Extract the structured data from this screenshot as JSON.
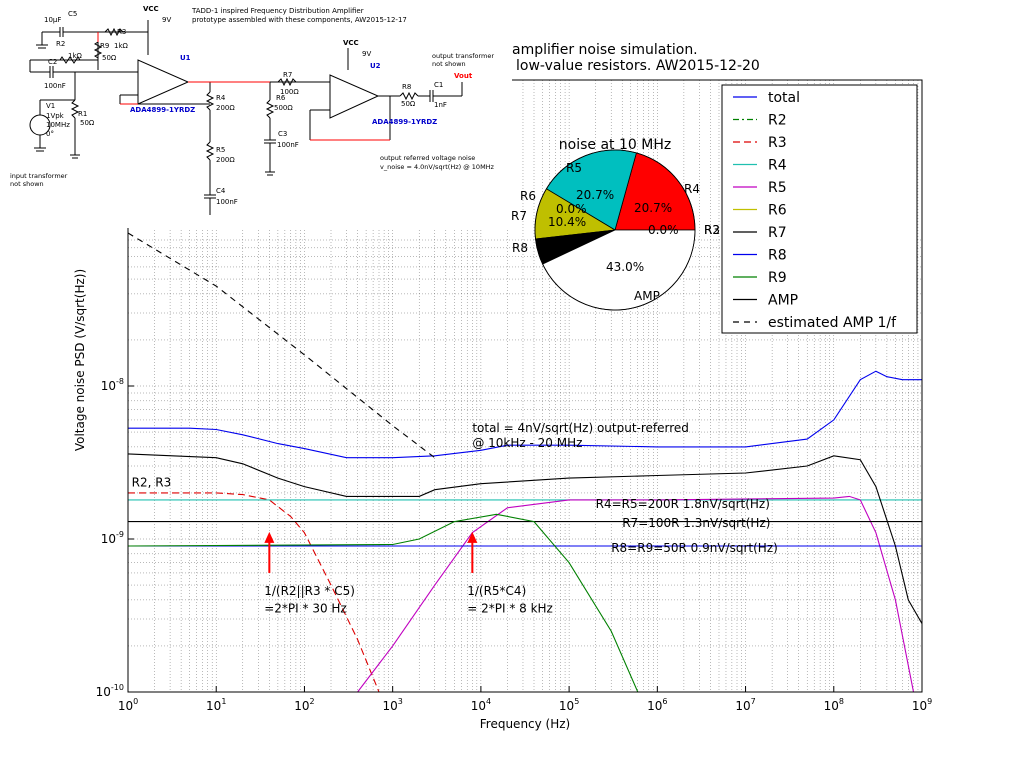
{
  "schematic": {
    "title": "TADD-1 inspired Frequency Distribution Amplifier",
    "subtitle": "prototype assembled with these components, AW2015-12-17",
    "vcc1": "VCC",
    "v9a": "9V",
    "vcc2": "VCC",
    "v9b": "9V",
    "c5": "C5",
    "c5v": "10µF",
    "r2": "R2",
    "r2v": "1kΩ",
    "r3": "R3",
    "r3v": "1kΩ",
    "r9": "R9",
    "r9v": "50Ω",
    "c2": "C2",
    "c2v": "100nF",
    "v1": "V1",
    "v1a": "1Vpk",
    "v1b": "10MHz",
    "v1c": "0°",
    "r1": "R1",
    "r1v": "50Ω",
    "u1": "U1",
    "u1p": "ADA4899-1YRDZ",
    "r4": "R4",
    "r4v": "200Ω",
    "r5": "R5",
    "r5v": "200Ω",
    "c4": "C4",
    "c4v": "100nF",
    "r7": "R7",
    "r7v": "100Ω",
    "r6": "R6",
    "r6v": "500Ω",
    "c3": "C3",
    "c3v": "100nF",
    "u2": "U2",
    "u2p": "ADA4899-1YRDZ",
    "r8": "R8",
    "r8v": "50Ω",
    "c1": "C1",
    "c1v": "1nF",
    "vout": "Vout",
    "out_note1": "output transformer",
    "out_note2": "not shown",
    "in_note1": "input transformer",
    "in_note2": "not shown",
    "noise_note1": "output referred voltage noise",
    "noise_note2": "v_noise = 4.0nV/sqrt(Hz) @ 10MHz"
  },
  "chart_data": [
    {
      "type": "line",
      "title_line1": "amplifier noise simulation.",
      "title_line2": "low-value resistors. AW2015-12-20",
      "xlabel": "Frequency (Hz)",
      "ylabel": "Voltage noise PSD (V/sqrt(Hz))",
      "xscale": "log",
      "yscale": "log",
      "xlim": [
        1,
        1000000000
      ],
      "ylim": [
        1e-10,
        1e-07
      ],
      "x_ticks": [
        {
          "v": 1,
          "base": "10",
          "exp": "0"
        },
        {
          "v": 10,
          "base": "10",
          "exp": "1"
        },
        {
          "v": 100,
          "base": "10",
          "exp": "2"
        },
        {
          "v": 1000,
          "base": "10",
          "exp": "3"
        },
        {
          "v": 10000,
          "base": "10",
          "exp": "4"
        },
        {
          "v": 100000,
          "base": "10",
          "exp": "5"
        },
        {
          "v": 1000000,
          "base": "10",
          "exp": "6"
        },
        {
          "v": 10000000,
          "base": "10",
          "exp": "7"
        },
        {
          "v": 100000000,
          "base": "10",
          "exp": "8"
        },
        {
          "v": 1000000000,
          "base": "10",
          "exp": "9"
        }
      ],
      "y_ticks": [
        {
          "v": 1e-10,
          "base": "10",
          "exp": "-10"
        },
        {
          "v": 1e-09,
          "base": "10",
          "exp": "-9"
        },
        {
          "v": 1e-08,
          "base": "10",
          "exp": "-8"
        }
      ],
      "grid": true,
      "legend_position": "top-right",
      "series": [
        {
          "name": "total",
          "color": "#0000ee",
          "dash": "",
          "points": [
            [
              1,
              5.3e-09
            ],
            [
              5,
              5.3e-09
            ],
            [
              10,
              5.2e-09
            ],
            [
              20,
              4.8e-09
            ],
            [
              50,
              4.2e-09
            ],
            [
              100,
              3.9e-09
            ],
            [
              300,
              3.4e-09
            ],
            [
              1000,
              3.4e-09
            ],
            [
              3000,
              3.5e-09
            ],
            [
              10000,
              3.8e-09
            ],
            [
              20000,
              4.1e-09
            ],
            [
              100000,
              4.1e-09
            ],
            [
              1000000,
              4e-09
            ],
            [
              10000000,
              4e-09
            ],
            [
              50000000,
              4.5e-09
            ],
            [
              100000000,
              6e-09
            ],
            [
              200000000,
              1.1e-08
            ],
            [
              300000000,
              1.25e-08
            ],
            [
              400000000,
              1.15e-08
            ],
            [
              600000000,
              1.1e-08
            ],
            [
              1000000000,
              1.1e-08
            ]
          ]
        },
        {
          "name": "R2",
          "color": "#008000",
          "dash": "6,3,2,3",
          "points": [
            [
              1,
              9e-10
            ],
            [
              1000000000,
              9e-10
            ]
          ]
        },
        {
          "name": "R3",
          "color": "#dd0000",
          "dash": "7,4",
          "points": [
            [
              1,
              2e-09
            ],
            [
              10,
              2e-09
            ],
            [
              20,
              1.95e-09
            ],
            [
              40,
              1.8e-09
            ],
            [
              70,
              1.4e-09
            ],
            [
              100,
              1.1e-09
            ],
            [
              200,
              5e-10
            ],
            [
              400,
              2.2e-10
            ],
            [
              700,
              1e-10
            ]
          ]
        },
        {
          "name": "R4",
          "color": "#20c0b0",
          "dash": "",
          "points": [
            [
              1,
              1.8e-09
            ],
            [
              1000000000,
              1.8e-09
            ]
          ]
        },
        {
          "name": "R5",
          "color": "#c000c0",
          "dash": "",
          "points": [
            [
              400,
              1e-10
            ],
            [
              1000,
              2e-10
            ],
            [
              3000,
              5e-10
            ],
            [
              8000,
              1.1e-09
            ],
            [
              20000,
              1.6e-09
            ],
            [
              100000,
              1.8e-09
            ],
            [
              1000000,
              1.8e-09
            ],
            [
              100000000,
              1.85e-09
            ],
            [
              150000000,
              1.9e-09
            ],
            [
              200000000,
              1.8e-09
            ],
            [
              300000000,
              1.1e-09
            ],
            [
              500000000,
              4e-10
            ],
            [
              800000000,
              1e-10
            ]
          ]
        },
        {
          "name": "R6",
          "color": "#c0c000",
          "dash": "",
          "points": []
        },
        {
          "name": "R7",
          "color": "#000000",
          "dash": "",
          "points": [
            [
              1,
              1.3e-09
            ],
            [
              1000000000,
              1.3e-09
            ]
          ]
        },
        {
          "name": "R8",
          "color": "#0000ee",
          "dash": "",
          "points": [
            [
              1,
              9e-10
            ],
            [
              1000000000,
              9e-10
            ]
          ]
        },
        {
          "name": "R9",
          "color": "#008000",
          "dash": "",
          "points": [
            [
              1,
              9e-10
            ],
            [
              1000,
              9.2e-10
            ],
            [
              2000,
              1e-09
            ],
            [
              5000,
              1.3e-09
            ],
            [
              15000,
              1.45e-09
            ],
            [
              40000,
              1.3e-09
            ],
            [
              100000,
              7e-10
            ],
            [
              300000,
              2.5e-10
            ],
            [
              600000,
              1e-10
            ]
          ]
        },
        {
          "name": "AMP",
          "color": "#000000",
          "dash": "",
          "points": [
            [
              1,
              3.6e-09
            ],
            [
              10,
              3.4e-09
            ],
            [
              20,
              3.1e-09
            ],
            [
              50,
              2.5e-09
            ],
            [
              100,
              2.2e-09
            ],
            [
              300,
              1.9e-09
            ],
            [
              1000,
              1.9e-09
            ],
            [
              2000,
              1.9e-09
            ],
            [
              3000,
              2.1e-09
            ],
            [
              10000,
              2.3e-09
            ],
            [
              100000,
              2.5e-09
            ],
            [
              1000000,
              2.6e-09
            ],
            [
              10000000,
              2.7e-09
            ],
            [
              50000000,
              3e-09
            ],
            [
              100000000,
              3.5e-09
            ],
            [
              200000000,
              3.3e-09
            ],
            [
              300000000,
              2.2e-09
            ],
            [
              500000000,
              9e-10
            ],
            [
              700000000,
              4e-10
            ],
            [
              1000000000,
              2.8e-10
            ]
          ]
        },
        {
          "name": "estimated AMP 1/f",
          "color": "#000000",
          "dash": "6,5",
          "points": [
            [
              1,
              1e-07
            ],
            [
              10,
              4.5e-08
            ],
            [
              100,
              1.6e-08
            ],
            [
              1000,
              5.5e-09
            ],
            [
              3000,
              3.4e-09
            ]
          ]
        }
      ],
      "annotations": [
        {
          "text": "total = 4nV/sqrt(Hz) output-referred",
          "x": 8000,
          "y": 5e-09
        },
        {
          "text": "@ 10kHz - 20 MHz",
          "x": 8000,
          "y": 4e-09
        },
        {
          "text": "R2, R3",
          "x": 1.1,
          "y": 2.2e-09
        },
        {
          "text": "R4=R5=200R  1.8nV/sqrt(Hz)",
          "x": 200000,
          "y": 1.6e-09
        },
        {
          "text": "R7=100R  1.3nV/sqrt(Hz)",
          "x": 400000,
          "y": 1.2e-09
        },
        {
          "text": "R8=R9=50R  0.9nV/sqrt(Hz)",
          "x": 300000,
          "y": 8.2e-10
        },
        {
          "text": "1/(R2||R3 * C5)",
          "x": 35,
          "y": 4.3e-10
        },
        {
          "text": "=2*PI * 30 Hz",
          "x": 35,
          "y": 3.3e-10
        },
        {
          "text": "1/(R5*C4)",
          "x": 7000,
          "y": 4.3e-10
        },
        {
          "text": "= 2*PI * 8 kHz",
          "x": 7000,
          "y": 3.3e-10
        }
      ],
      "arrows": [
        {
          "x": 40,
          "y_from": 6e-10,
          "y_to": 1.08e-09,
          "color": "#ff0000"
        },
        {
          "x": 8000,
          "y_from": 6e-10,
          "y_to": 1.08e-09,
          "color": "#ff0000"
        }
      ]
    },
    {
      "type": "pie",
      "title": "noise at 10 MHz",
      "start_angle_deg": 0,
      "slices": [
        {
          "label": "R2",
          "value": 0.0,
          "pct": "0.0%",
          "color": "#1f9a1f"
        },
        {
          "label": "R3",
          "value": 0.0,
          "pct": "0.0%",
          "color": "#dd0000"
        },
        {
          "label": "R4",
          "value": 20.7,
          "pct": "20.7%",
          "color": "#ff0000"
        },
        {
          "label": "R5",
          "value": 20.7,
          "pct": "20.7%",
          "color": "#00bfbf"
        },
        {
          "label": "R6",
          "value": 0.0,
          "pct": "0.0%",
          "color": "#bfbf00"
        },
        {
          "label": "R7",
          "value": 10.4,
          "pct": "10.4%",
          "color": "#bfbf00"
        },
        {
          "label": "R8",
          "value": 5.2,
          "pct": "",
          "color": "#000000"
        },
        {
          "label": "AMP",
          "value": 43.0,
          "pct": "43.0%",
          "color": "#ffffff"
        }
      ]
    }
  ]
}
